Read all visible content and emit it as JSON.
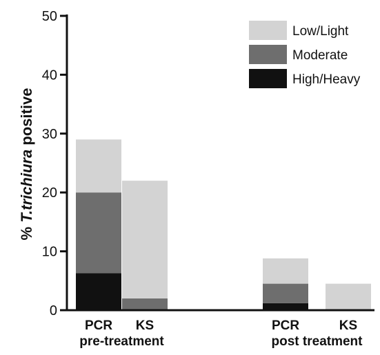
{
  "chart_data": {
    "type": "bar",
    "stacked": true,
    "ylim": [
      0,
      50
    ],
    "yticks": [
      0,
      10,
      20,
      30,
      40,
      50
    ],
    "ylabel_parts": [
      {
        "text": "% ",
        "italic": false
      },
      {
        "text": "T.trichiura",
        "italic": true
      },
      {
        "text": " positive",
        "italic": false
      }
    ],
    "categories": [
      "PCR",
      "KS",
      "PCR",
      "KS"
    ],
    "groups": [
      {
        "label": "pre-treatment",
        "categories": [
          "PCR",
          "KS"
        ]
      },
      {
        "label": "post treatment",
        "categories": [
          "PCR",
          "KS"
        ]
      }
    ],
    "series": [
      {
        "name": "High/Heavy",
        "color": "#111111",
        "values": [
          6.3,
          0,
          1.2,
          0
        ]
      },
      {
        "name": "Moderate",
        "color": "#6e6e6e",
        "values": [
          13.7,
          2.0,
          3.3,
          0
        ]
      },
      {
        "name": "Low/Light",
        "color": "#d3d3d3",
        "values": [
          9.0,
          20.0,
          4.3,
          4.5
        ]
      }
    ],
    "legend_order": [
      "Low/Light",
      "Moderate",
      "High/Heavy"
    ],
    "legend_position": "top-right",
    "grid": false
  }
}
